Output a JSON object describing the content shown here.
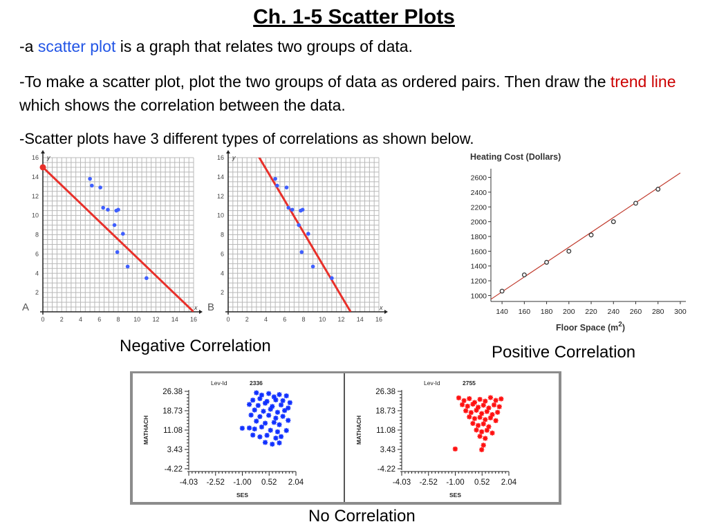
{
  "slide": {
    "title": "Ch. 1-5 Scatter Plots",
    "p1": {
      "a": "-a ",
      "b": "scatter plot",
      "c": " is a graph that relates two groups of data."
    },
    "p2": {
      "a": "-To make a scatter plot, plot the two groups of data as ordered pairs.  Then draw the ",
      "b": "trend line",
      "c": " which shows the correlation between the data."
    },
    "p3": "-Scatter plots have 3 different types of correlations as shown below.",
    "captions": {
      "negative": "Negative Correlation",
      "positive": "Positive Correlation",
      "none": "No Correlation"
    }
  },
  "colors": {
    "link_blue": "#2255e6",
    "term_red": "#cc0000",
    "trend_red": "#e8302a",
    "point_blue": "#3f5fff",
    "grid": "#b8b8b8",
    "noc_blue": "#1030ff",
    "noc_red": "#ff1010"
  },
  "chart_data": [
    {
      "type": "scatter",
      "panel_label": "A",
      "xlabel": "x",
      "ylabel": "y",
      "xlim": [
        0,
        16
      ],
      "ylim": [
        0,
        16
      ],
      "xticks": [
        0,
        2,
        4,
        6,
        8,
        10,
        12,
        14,
        16
      ],
      "yticks": [
        2,
        4,
        6,
        8,
        10,
        12,
        14,
        16
      ],
      "grid": true,
      "points": [
        [
          5,
          13.8
        ],
        [
          5.2,
          13.1
        ],
        [
          6.1,
          12.9
        ],
        [
          6.4,
          10.8
        ],
        [
          6.9,
          10.6
        ],
        [
          7.6,
          9
        ],
        [
          7.8,
          10.5
        ],
        [
          8,
          10.6
        ],
        [
          7.9,
          6.2
        ],
        [
          8.5,
          8.1
        ],
        [
          9,
          4.7
        ],
        [
          11,
          3.5
        ]
      ],
      "trend_line": [
        [
          0,
          15
        ],
        [
          16,
          0
        ]
      ],
      "trend_start_marker": [
        0,
        15
      ]
    },
    {
      "type": "scatter",
      "panel_label": "B",
      "xlabel": "x",
      "ylabel": "y",
      "xlim": [
        0,
        16
      ],
      "ylim": [
        0,
        16
      ],
      "xticks": [
        0,
        2,
        4,
        6,
        8,
        10,
        12,
        14,
        16
      ],
      "yticks": [
        2,
        4,
        6,
        8,
        10,
        12,
        14,
        16
      ],
      "grid": true,
      "points": [
        [
          5,
          13.8
        ],
        [
          5.2,
          13.1
        ],
        [
          6.2,
          12.9
        ],
        [
          6.4,
          10.8
        ],
        [
          6.8,
          10.6
        ],
        [
          7.5,
          9
        ],
        [
          7.7,
          10.5
        ],
        [
          7.9,
          10.6
        ],
        [
          7.8,
          6.2
        ],
        [
          8.5,
          8.1
        ],
        [
          9,
          4.7
        ],
        [
          11,
          3.5
        ]
      ],
      "trend_line": [
        [
          2.7,
          17
        ],
        [
          13,
          0
        ]
      ]
    },
    {
      "type": "scatter",
      "title": "Heating Cost (Dollars)",
      "xlabel_prefix": "Floor Space (m",
      "xlabel_sup": "2",
      "xlabel_suffix": ")",
      "xlim": [
        130,
        305
      ],
      "ylim": [
        920,
        2680
      ],
      "xticks": [
        140,
        160,
        180,
        200,
        220,
        240,
        260,
        280,
        300
      ],
      "yticks": [
        1000,
        1200,
        1400,
        1600,
        1800,
        2000,
        2200,
        2400,
        2600
      ],
      "grid": false,
      "points": [
        [
          140,
          1060
        ],
        [
          160,
          1280
        ],
        [
          180,
          1450
        ],
        [
          200,
          1600
        ],
        [
          220,
          1820
        ],
        [
          240,
          2000
        ],
        [
          260,
          2250
        ],
        [
          280,
          2440
        ]
      ],
      "trend_line": [
        [
          130,
          950
        ],
        [
          300,
          2660
        ]
      ]
    },
    {
      "type": "scatter",
      "header_label": "Lev-Id",
      "header_value": "2336",
      "xlabel": "SES",
      "ylabel": "MATHACH",
      "xlim": [
        -4.03,
        2.04
      ],
      "ylim": [
        -4.22,
        26.38
      ],
      "xtick_labels": [
        "-4.03",
        "-2.52",
        "-1.00",
        "0.52",
        "2.04"
      ],
      "ytick_labels": [
        "-4.22",
        "3.43",
        "11.08",
        "18.73",
        "26.38"
      ],
      "marker": "asterisk",
      "points": [
        [
          -0.2,
          25.8
        ],
        [
          0.1,
          24.9
        ],
        [
          0.5,
          25.5
        ],
        [
          0.8,
          24.2
        ],
        [
          1.1,
          25.1
        ],
        [
          1.5,
          24.6
        ],
        [
          -0.4,
          22.9
        ],
        [
          0.0,
          23.5
        ],
        [
          0.4,
          22.4
        ],
        [
          0.9,
          23.0
        ],
        [
          1.3,
          22.7
        ],
        [
          1.7,
          21.9
        ],
        [
          -0.6,
          21.2
        ],
        [
          -0.1,
          20.8
        ],
        [
          0.3,
          21.7
        ],
        [
          0.7,
          20.4
        ],
        [
          1.2,
          21.0
        ],
        [
          1.6,
          19.8
        ],
        [
          -0.3,
          19.0
        ],
        [
          0.2,
          18.5
        ],
        [
          0.6,
          19.3
        ],
        [
          1.0,
          18.1
        ],
        [
          1.4,
          18.8
        ],
        [
          -0.5,
          17.0
        ],
        [
          0.0,
          16.4
        ],
        [
          0.5,
          16.9
        ],
        [
          0.9,
          15.8
        ],
        [
          1.3,
          16.5
        ],
        [
          1.6,
          14.9
        ],
        [
          -0.2,
          14.6
        ],
        [
          0.3,
          13.8
        ],
        [
          0.8,
          14.1
        ],
        [
          1.1,
          13.2
        ],
        [
          -1.0,
          11.8
        ],
        [
          -0.6,
          11.9
        ],
        [
          -0.3,
          11.5
        ],
        [
          0.1,
          12.3
        ],
        [
          0.6,
          11.0
        ],
        [
          1.0,
          10.4
        ],
        [
          1.5,
          10.9
        ],
        [
          -0.4,
          9.1
        ],
        [
          0.0,
          8.4
        ],
        [
          0.4,
          9.0
        ],
        [
          0.9,
          7.9
        ],
        [
          1.2,
          8.5
        ],
        [
          0.3,
          6.2
        ],
        [
          0.7,
          5.5
        ],
        [
          1.1,
          6.0
        ]
      ]
    },
    {
      "type": "scatter",
      "header_label": "Lev-Id",
      "header_value": "2755",
      "xlabel": "SES",
      "ylabel": "MATHACH",
      "xlim": [
        -4.03,
        2.04
      ],
      "ylim": [
        -4.22,
        26.38
      ],
      "xtick_labels": [
        "-4.03",
        "-2.52",
        "-1.00",
        "0.52",
        "2.04"
      ],
      "ytick_labels": [
        "-4.22",
        "3.43",
        "11.08",
        "18.73",
        "26.38"
      ],
      "marker": "asterisk",
      "points": [
        [
          -1.0,
          3.6
        ],
        [
          -0.8,
          23.8
        ],
        [
          -0.5,
          22.7
        ],
        [
          -0.2,
          23.5
        ],
        [
          0.1,
          22.0
        ],
        [
          0.4,
          23.2
        ],
        [
          0.7,
          22.5
        ],
        [
          1.0,
          23.9
        ],
        [
          1.3,
          22.8
        ],
        [
          1.6,
          23.4
        ],
        [
          -0.6,
          21.1
        ],
        [
          -0.3,
          20.5
        ],
        [
          0.0,
          21.3
        ],
        [
          0.3,
          20.1
        ],
        [
          0.6,
          20.9
        ],
        [
          0.9,
          19.8
        ],
        [
          1.2,
          21.0
        ],
        [
          1.5,
          20.3
        ],
        [
          -0.4,
          18.7
        ],
        [
          -0.1,
          18.0
        ],
        [
          0.2,
          18.9
        ],
        [
          0.5,
          17.6
        ],
        [
          0.8,
          18.4
        ],
        [
          1.1,
          17.2
        ],
        [
          1.4,
          18.1
        ],
        [
          -0.2,
          16.3
        ],
        [
          0.1,
          15.6
        ],
        [
          0.4,
          16.1
        ],
        [
          0.7,
          15.2
        ],
        [
          1.0,
          15.9
        ],
        [
          1.3,
          14.8
        ],
        [
          0.0,
          13.7
        ],
        [
          0.3,
          12.9
        ],
        [
          0.6,
          13.5
        ],
        [
          0.9,
          12.4
        ],
        [
          0.2,
          11.1
        ],
        [
          0.5,
          10.4
        ],
        [
          0.8,
          11.0
        ],
        [
          1.1,
          9.9
        ],
        [
          0.4,
          8.6
        ],
        [
          0.7,
          7.8
        ],
        [
          0.6,
          5.1
        ],
        [
          0.5,
          3.3
        ]
      ]
    }
  ]
}
